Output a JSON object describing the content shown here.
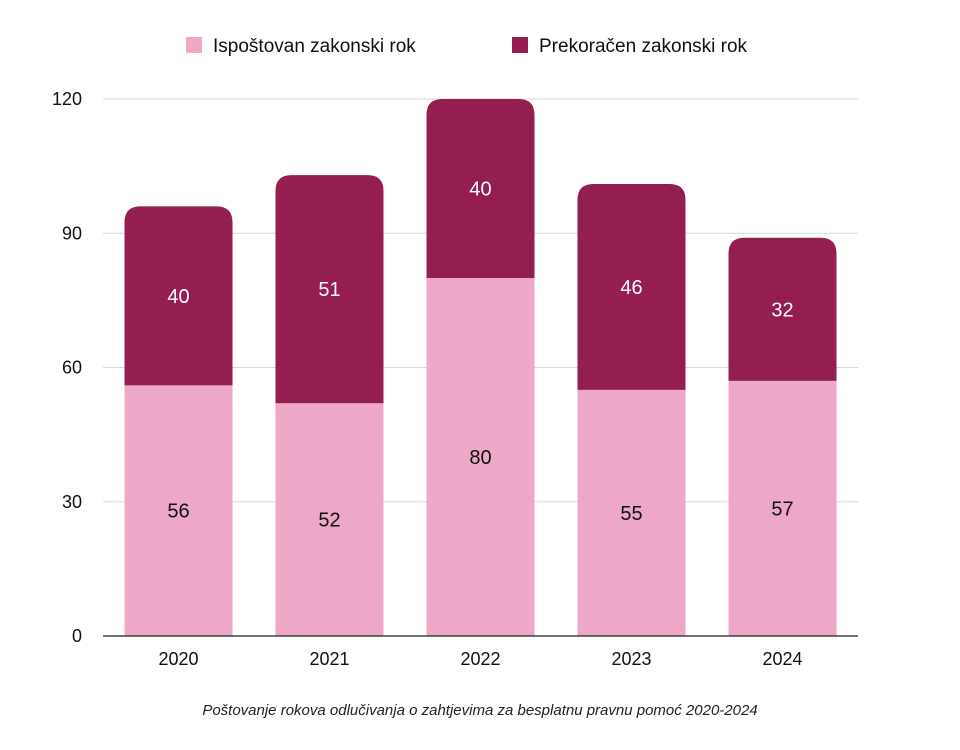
{
  "chart_data": {
    "type": "bar",
    "stacked": true,
    "categories": [
      "2020",
      "2021",
      "2022",
      "2023",
      "2024"
    ],
    "series": [
      {
        "name": "Ispoštovan zakonski rok",
        "values": [
          56,
          52,
          80,
          55,
          57
        ],
        "color": "#eda8c8",
        "label_color": "#111111"
      },
      {
        "name": "Prekoračen zakonski rok",
        "values": [
          40,
          51,
          40,
          46,
          32
        ],
        "color": "#931e4f",
        "label_color": "#ffffff"
      }
    ],
    "yticks": [
      "0",
      "30",
      "60",
      "90",
      "120"
    ],
    "ylim": [
      0,
      120
    ],
    "grid": true,
    "legend_position": "top",
    "caption": "Poštovanje rokova odlučivanja o zahtjevima za besplatnu pravnu pomoć 2020-2024"
  }
}
